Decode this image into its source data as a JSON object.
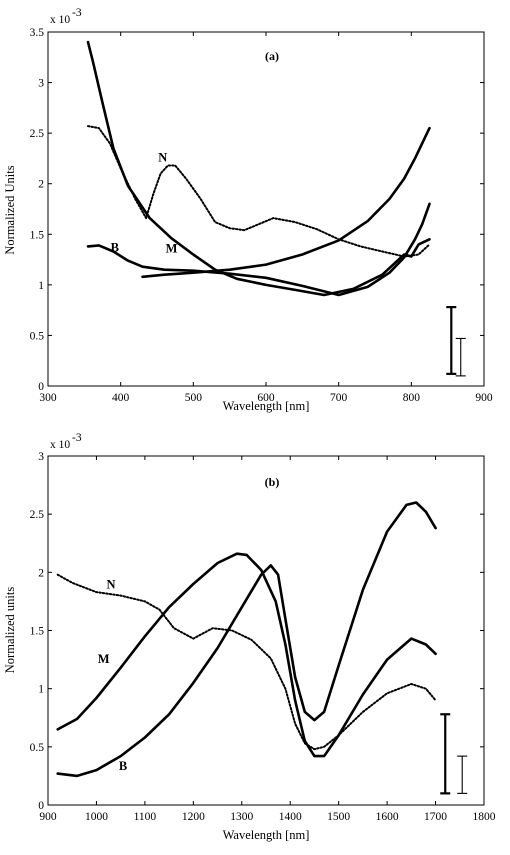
{
  "chart_data": [
    {
      "type": "line",
      "title": "(a)",
      "xlabel": "Wavelength [nm]",
      "ylabel": "Normalized Units",
      "y_exponent_label": "x 10",
      "y_exponent": "-3",
      "xlim": [
        300,
        900
      ],
      "ylim": [
        0,
        3.5
      ],
      "xticks": [
        300,
        400,
        500,
        600,
        700,
        800,
        900
      ],
      "yticks": [
        0,
        0.5,
        1,
        1.5,
        2,
        2.5,
        3,
        3.5
      ],
      "ytick_labels": [
        "0",
        "0.5",
        "1",
        "1.5",
        "2",
        "2.5",
        "3",
        "3.5"
      ],
      "grid": false,
      "series": [
        {
          "name": "B",
          "style": "solid",
          "label_at": [
            392,
            1.33
          ],
          "x": [
            355,
            370,
            390,
            410,
            430,
            460,
            500,
            550,
            600,
            650,
            700,
            740,
            770,
            790,
            805,
            815,
            825
          ],
          "y": [
            1.38,
            1.39,
            1.33,
            1.24,
            1.18,
            1.15,
            1.14,
            1.11,
            1.07,
            0.99,
            0.9,
            0.98,
            1.12,
            1.27,
            1.45,
            1.6,
            1.8
          ]
        },
        {
          "name": "M",
          "style": "solid",
          "label_at": [
            470,
            1.32
          ],
          "x": [
            355,
            362,
            375,
            390,
            410,
            440,
            470,
            500,
            530,
            560,
            600,
            640,
            680,
            720,
            760,
            790,
            800,
            810,
            825
          ],
          "y": [
            3.4,
            3.2,
            2.8,
            2.35,
            1.98,
            1.66,
            1.46,
            1.3,
            1.15,
            1.06,
            1.0,
            0.95,
            0.9,
            0.96,
            1.1,
            1.3,
            1.28,
            1.4,
            1.45
          ]
        },
        {
          "name": "",
          "style": "solid",
          "label_at": null,
          "x": [
            430,
            460,
            500,
            550,
            600,
            650,
            700,
            740,
            770,
            790,
            805,
            815,
            825
          ],
          "y": [
            1.08,
            1.1,
            1.12,
            1.15,
            1.2,
            1.3,
            1.44,
            1.63,
            1.85,
            2.05,
            2.25,
            2.4,
            2.55
          ]
        },
        {
          "name": "N",
          "style": "dotted",
          "label_at": [
            458,
            2.22
          ],
          "x": [
            355,
            370,
            385,
            400,
            420,
            435,
            445,
            455,
            465,
            475,
            490,
            510,
            530,
            550,
            570,
            590,
            610,
            640,
            670,
            700,
            730,
            760,
            790,
            810,
            825
          ],
          "y": [
            2.57,
            2.55,
            2.4,
            2.15,
            1.85,
            1.66,
            1.9,
            2.1,
            2.18,
            2.18,
            2.05,
            1.85,
            1.62,
            1.56,
            1.54,
            1.6,
            1.66,
            1.62,
            1.55,
            1.45,
            1.38,
            1.33,
            1.28,
            1.3,
            1.4
          ]
        }
      ],
      "error_bars": [
        {
          "x": 855,
          "y_low": 0.12,
          "y_high": 0.78,
          "weight": "thick"
        },
        {
          "x": 868,
          "y_low": 0.1,
          "y_high": 0.47,
          "weight": "thin"
        }
      ]
    },
    {
      "type": "line",
      "title": "(b)",
      "xlabel": "Wavelength [nm]",
      "ylabel": "Normalized units",
      "y_exponent_label": "x 10",
      "y_exponent": "-3",
      "xlim": [
        900,
        1800
      ],
      "ylim": [
        0,
        3
      ],
      "xticks": [
        900,
        1000,
        1100,
        1200,
        1300,
        1400,
        1500,
        1600,
        1700,
        1800
      ],
      "yticks": [
        0,
        0.5,
        1,
        1.5,
        2,
        2.5,
        3
      ],
      "ytick_labels": [
        "0",
        "0.5",
        "1",
        "1.5",
        "2",
        "2.5",
        "3"
      ],
      "grid": false,
      "series": [
        {
          "name": "N",
          "style": "dotted",
          "label_at": [
            1030,
            1.86
          ],
          "x": [
            920,
            950,
            1000,
            1050,
            1100,
            1130,
            1160,
            1200,
            1240,
            1280,
            1320,
            1360,
            1390,
            1410,
            1430,
            1450,
            1470,
            1500,
            1550,
            1600,
            1650,
            1680,
            1700
          ],
          "y": [
            1.98,
            1.91,
            1.83,
            1.8,
            1.75,
            1.68,
            1.52,
            1.43,
            1.52,
            1.5,
            1.42,
            1.26,
            1.0,
            0.7,
            0.53,
            0.48,
            0.5,
            0.6,
            0.8,
            0.96,
            1.04,
            1.0,
            0.9
          ]
        },
        {
          "name": "M",
          "style": "solid",
          "label_at": [
            1015,
            1.22
          ],
          "x": [
            920,
            960,
            1000,
            1050,
            1100,
            1150,
            1200,
            1250,
            1290,
            1310,
            1340,
            1370,
            1390,
            1410,
            1430,
            1450,
            1470,
            1500,
            1550,
            1600,
            1650,
            1680,
            1700
          ],
          "y": [
            0.65,
            0.74,
            0.92,
            1.18,
            1.45,
            1.7,
            1.9,
            2.08,
            2.16,
            2.15,
            2.02,
            1.75,
            1.38,
            0.9,
            0.55,
            0.42,
            0.42,
            0.6,
            0.95,
            1.25,
            1.43,
            1.38,
            1.3
          ]
        },
        {
          "name": "",
          "style": "solid",
          "label_at": null,
          "x": [
            920,
            960,
            1000,
            1050,
            1100,
            1150,
            1200,
            1250,
            1300,
            1340,
            1360,
            1375,
            1390,
            1410,
            1430,
            1450,
            1470,
            1500,
            1550,
            1600,
            1640,
            1660,
            1680,
            1700
          ],
          "y": [
            0.27,
            0.25,
            0.3,
            0.42,
            0.58,
            0.78,
            1.05,
            1.35,
            1.7,
            1.98,
            2.06,
            1.98,
            1.6,
            1.1,
            0.8,
            0.73,
            0.8,
            1.2,
            1.85,
            2.35,
            2.58,
            2.6,
            2.52,
            2.38
          ]
        },
        {
          "name": "B",
          "style": "label-only",
          "label_at": [
            1055,
            0.3
          ],
          "x": [],
          "y": []
        }
      ],
      "error_bars": [
        {
          "x": 1720,
          "y_low": 0.1,
          "y_high": 0.78,
          "weight": "thick"
        },
        {
          "x": 1755,
          "y_low": 0.1,
          "y_high": 0.42,
          "weight": "thin"
        }
      ]
    }
  ]
}
